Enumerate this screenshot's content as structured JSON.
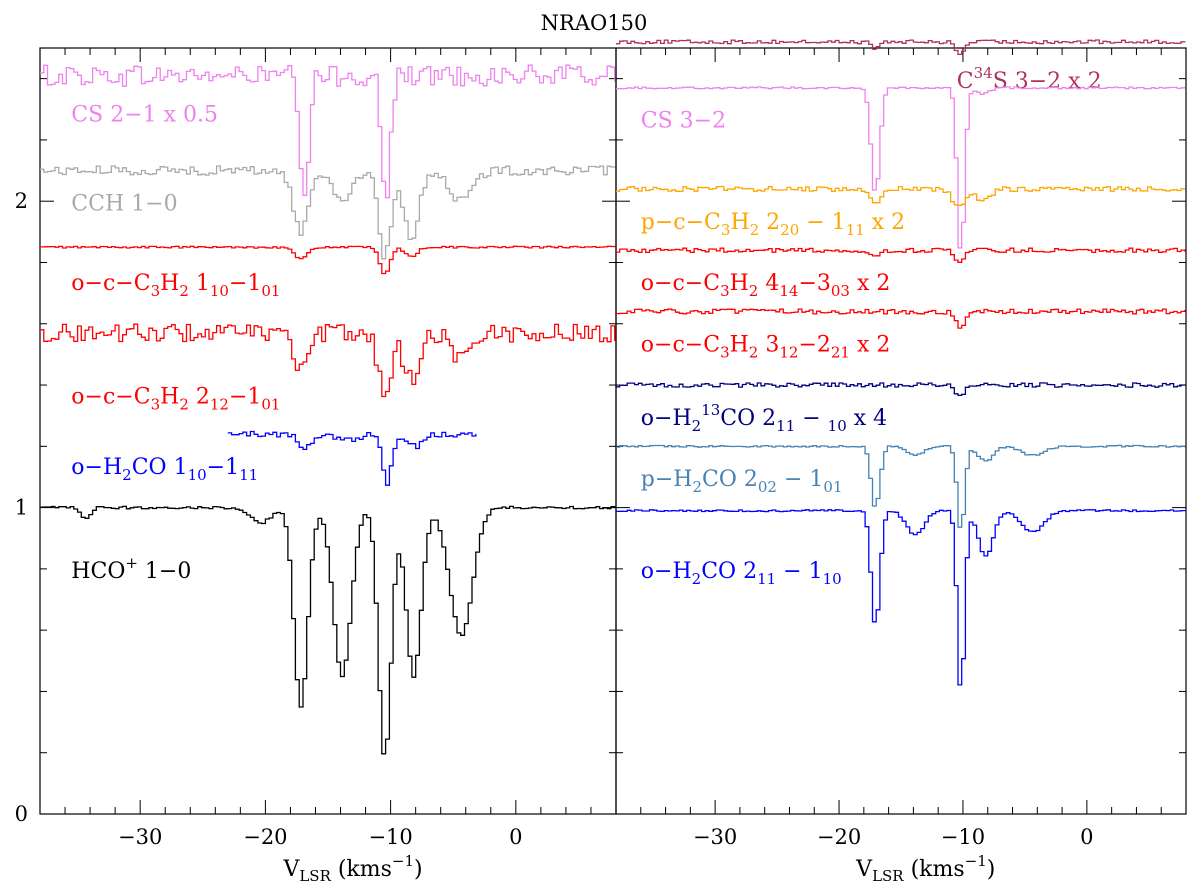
{
  "figure": {
    "title": "NRAO150"
  },
  "chart_data": [
    {
      "type": "line",
      "panel": "left",
      "xlabel": "V_LSR (kms^-1)",
      "xlim": [
        -38,
        8
      ],
      "ylim": [
        0,
        2.5
      ],
      "x_ticks": [
        -30,
        -20,
        -10,
        0
      ],
      "x_tick_labels": [
        "−30",
        "−20",
        "−10",
        "0"
      ],
      "y_ticks": [
        0,
        1,
        2
      ],
      "y_tick_labels": [
        "0",
        "1",
        "2"
      ],
      "series": [
        {
          "name": "CS 2−1 x 0.5",
          "color": "#ee82ee",
          "x_range": [
            -38,
            8
          ],
          "baseline": 2.41,
          "noise": 0.035,
          "label": {
            "parts": [
              {
                "t": "CS 2−1 x 0.5"
              }
            ]
          },
          "label_pos": [
            -35.5,
            2.26
          ],
          "absorption": [
            {
              "v": -17.0,
              "depth": 0.42,
              "width": 0.35
            },
            {
              "v": -10.5,
              "depth": 0.4,
              "width": 0.35
            }
          ]
        },
        {
          "name": "CCH 1−0",
          "color": "#a9a9a9",
          "x_range": [
            -38,
            8
          ],
          "baseline": 2.1,
          "noise": 0.015,
          "label": {
            "parts": [
              {
                "t": "CCH 1−0"
              }
            ]
          },
          "label_pos": [
            -35.5,
            1.97
          ],
          "absorption": [
            {
              "v": -17.3,
              "depth": 0.2,
              "width": 0.6
            },
            {
              "v": -14.0,
              "depth": 0.1,
              "width": 0.7
            },
            {
              "v": -10.6,
              "depth": 0.28,
              "width": 0.5
            },
            {
              "v": -8.5,
              "depth": 0.22,
              "width": 0.6
            },
            {
              "v": -4.5,
              "depth": 0.1,
              "width": 0.9
            }
          ]
        },
        {
          "name": "o-c-C3H2 1_10-1_01",
          "color": "#ff0000",
          "x_range": [
            -38,
            8
          ],
          "baseline": 1.85,
          "noise": 0.003,
          "label": {
            "parts": [
              {
                "t": "o−c−C"
              },
              {
                "t": "3",
                "sub": true
              },
              {
                "t": "H"
              },
              {
                "t": "2",
                "sub": true
              },
              {
                "t": " 1"
              },
              {
                "t": "10",
                "sub": true
              },
              {
                "t": "−1"
              },
              {
                "t": "01",
                "sub": true
              }
            ]
          },
          "label_pos": [
            -35.5,
            1.71
          ],
          "absorption": [
            {
              "v": -17.3,
              "depth": 0.04,
              "width": 0.5
            },
            {
              "v": -10.6,
              "depth": 0.09,
              "width": 0.4
            },
            {
              "v": -8.5,
              "depth": 0.03,
              "width": 0.5
            }
          ]
        },
        {
          "name": "o-c-C3H2 2_12-1_01",
          "color": "#ff0000",
          "x_range": [
            -38,
            8
          ],
          "baseline": 1.57,
          "noise": 0.03,
          "label": {
            "parts": [
              {
                "t": "o−c−C"
              },
              {
                "t": "3",
                "sub": true
              },
              {
                "t": "H"
              },
              {
                "t": "2",
                "sub": true
              },
              {
                "t": " 2"
              },
              {
                "t": "12",
                "sub": true
              },
              {
                "t": "−1"
              },
              {
                "t": "01",
                "sub": true
              }
            ]
          },
          "label_pos": [
            -35.5,
            1.34
          ],
          "absorption": [
            {
              "v": -17.2,
              "depth": 0.12,
              "width": 0.6
            },
            {
              "v": -10.6,
              "depth": 0.2,
              "width": 0.5
            },
            {
              "v": -8.5,
              "depth": 0.15,
              "width": 0.6
            },
            {
              "v": -4.5,
              "depth": 0.08,
              "width": 0.8
            }
          ]
        },
        {
          "name": "o-H2CO 1_10-1_11",
          "color": "#0000ff",
          "x_range": [
            -23,
            -3
          ],
          "baseline": 1.24,
          "noise": 0.01,
          "label": {
            "parts": [
              {
                "t": "o−H"
              },
              {
                "t": "2",
                "sub": true
              },
              {
                "t": "CO 1"
              },
              {
                "t": "10",
                "sub": true
              },
              {
                "t": "−1"
              },
              {
                "t": "11",
                "sub": true
              }
            ]
          },
          "label_pos": [
            -35.5,
            1.11
          ],
          "absorption": [
            {
              "v": -17.0,
              "depth": 0.05,
              "width": 0.5
            },
            {
              "v": -13.5,
              "depth": 0.02,
              "width": 0.8
            },
            {
              "v": -10.4,
              "depth": 0.16,
              "width": 0.35
            },
            {
              "v": -8.2,
              "depth": 0.04,
              "width": 0.6
            }
          ]
        },
        {
          "name": "HCO+ 1−0",
          "color": "#000000",
          "x_range": [
            -38,
            8
          ],
          "baseline": 1.0,
          "noise": 0.004,
          "label": {
            "parts": [
              {
                "t": "HCO"
              },
              {
                "t": "+",
                "sup": true
              },
              {
                "t": " 1−0"
              }
            ]
          },
          "label_pos": [
            -35.5,
            0.77
          ],
          "absorption": [
            {
              "v": -34.5,
              "depth": 0.04,
              "width": 0.35
            },
            {
              "v": -17.3,
              "depth": 0.65,
              "width": 0.55
            },
            {
              "v": -14.0,
              "depth": 0.55,
              "width": 0.7
            },
            {
              "v": -10.6,
              "depth": 0.82,
              "width": 0.5
            },
            {
              "v": -8.3,
              "depth": 0.55,
              "width": 0.6
            },
            {
              "v": -4.5,
              "depth": 0.42,
              "width": 0.9
            },
            {
              "v": -20.5,
              "depth": 0.05,
              "width": 0.8
            }
          ]
        }
      ]
    },
    {
      "type": "line",
      "panel": "right",
      "xlabel": "V_LSR (kms^-1)",
      "xlim": [
        -38,
        8
      ],
      "ylim": [
        0,
        2.5
      ],
      "x_ticks": [
        -30,
        -20,
        -10,
        0
      ],
      "x_tick_labels": [
        "−30",
        "−20",
        "−10",
        "0"
      ],
      "series": [
        {
          "name": "C34S 3−2 x 2",
          "color": "#b03060",
          "x_range": [
            -38,
            8
          ],
          "baseline": 2.52,
          "noise": 0.006,
          "label": {
            "parts": [
              {
                "t": "C"
              },
              {
                "t": "34",
                "sup": true
              },
              {
                "t": "S 3−2 x 2"
              }
            ]
          },
          "label_pos": [
            -10.5,
            2.37
          ],
          "absorption": [
            {
              "v": -17.2,
              "depth": 0.02,
              "width": 0.35
            },
            {
              "v": -10.4,
              "depth": 0.04,
              "width": 0.35
            }
          ]
        },
        {
          "name": "CS 3−2",
          "color": "#ee82ee",
          "x_range": [
            -38,
            8
          ],
          "baseline": 2.37,
          "noise": 0.003,
          "label": {
            "parts": [
              {
                "t": "CS 3−2"
              }
            ]
          },
          "label_pos": [
            -36.0,
            2.24
          ],
          "absorption": [
            {
              "v": -17.2,
              "depth": 0.35,
              "width": 0.35
            },
            {
              "v": -10.3,
              "depth": 0.55,
              "width": 0.3
            },
            {
              "v": -8.5,
              "depth": 0.02,
              "width": 0.5
            }
          ]
        },
        {
          "name": "p-c-C3H2 2_20 − 1_11 x 2",
          "color": "#ffa500",
          "x_range": [
            -38,
            8
          ],
          "baseline": 2.04,
          "noise": 0.008,
          "label": {
            "parts": [
              {
                "t": "p−c−C"
              },
              {
                "t": "3",
                "sub": true
              },
              {
                "t": "H"
              },
              {
                "t": "2",
                "sub": true
              },
              {
                "t": " 2"
              },
              {
                "t": "20",
                "sub": true
              },
              {
                "t": " − 1"
              },
              {
                "t": "11",
                "sub": true
              },
              {
                "t": " x 2"
              }
            ]
          },
          "label_pos": [
            -36.0,
            1.91
          ],
          "absorption": [
            {
              "v": -17.2,
              "depth": 0.05,
              "width": 0.5
            },
            {
              "v": -10.5,
              "depth": 0.06,
              "width": 0.5
            },
            {
              "v": -8.5,
              "depth": 0.04,
              "width": 0.6
            }
          ]
        },
        {
          "name": "o-c-C3H2 4_14-3_03 x 2",
          "color": "#ff0000",
          "x_range": [
            -38,
            8
          ],
          "baseline": 1.84,
          "noise": 0.007,
          "label": {
            "parts": [
              {
                "t": "o−c−C"
              },
              {
                "t": "3",
                "sub": true
              },
              {
                "t": "H"
              },
              {
                "t": "2",
                "sub": true
              },
              {
                "t": " 4"
              },
              {
                "t": "14",
                "sub": true
              },
              {
                "t": "−3"
              },
              {
                "t": "03",
                "sub": true
              },
              {
                "t": " x 2"
              }
            ]
          },
          "label_pos": [
            -36.0,
            1.71
          ],
          "absorption": [
            {
              "v": -17.2,
              "depth": 0.02,
              "width": 0.5
            },
            {
              "v": -10.4,
              "depth": 0.04,
              "width": 0.4
            }
          ]
        },
        {
          "name": "o-c-C3H2 3_12-2_21 x 2",
          "color": "#ff0000",
          "x_range": [
            -38,
            8
          ],
          "baseline": 1.64,
          "noise": 0.008,
          "label": {
            "parts": [
              {
                "t": "o−c−C"
              },
              {
                "t": "3",
                "sub": true
              },
              {
                "t": "H"
              },
              {
                "t": "2",
                "sub": true
              },
              {
                "t": " 3"
              },
              {
                "t": "12",
                "sub": true
              },
              {
                "t": "−2"
              },
              {
                "t": "21",
                "sub": true
              },
              {
                "t": " x 2"
              }
            ]
          },
          "label_pos": [
            -36.0,
            1.51
          ],
          "absorption": [
            {
              "v": -10.4,
              "depth": 0.05,
              "width": 0.4
            }
          ]
        },
        {
          "name": "o-H2 13CO 2_11 − 10 x 4",
          "color": "#000080",
          "x_range": [
            -38,
            8
          ],
          "baseline": 1.4,
          "noise": 0.007,
          "label": {
            "parts": [
              {
                "t": "o−H"
              },
              {
                "t": "2",
                "sub": true
              },
              {
                "t": "13",
                "sup": true
              },
              {
                "t": "CO  2"
              },
              {
                "t": "11",
                "sub": true
              },
              {
                "t": " − "
              },
              {
                "t": "10",
                "sub": true
              },
              {
                "t": " x 4"
              }
            ]
          },
          "label_pos": [
            -36.0,
            1.27
          ],
          "absorption": [
            {
              "v": -10.4,
              "depth": 0.04,
              "width": 0.4
            }
          ]
        },
        {
          "name": "p-H2CO 2_02 − 1_01",
          "color": "#4682b4",
          "x_range": [
            -38,
            8
          ],
          "baseline": 1.2,
          "noise": 0.003,
          "label": {
            "parts": [
              {
                "t": "p−H"
              },
              {
                "t": "2",
                "sub": true
              },
              {
                "t": "CO 2"
              },
              {
                "t": "02",
                "sub": true
              },
              {
                "t": " − 1"
              },
              {
                "t": "01",
                "sub": true
              }
            ]
          },
          "label_pos": [
            -36.0,
            1.07
          ],
          "absorption": [
            {
              "v": -17.2,
              "depth": 0.2,
              "width": 0.35
            },
            {
              "v": -14.0,
              "depth": 0.03,
              "width": 0.7
            },
            {
              "v": -10.3,
              "depth": 0.28,
              "width": 0.3
            },
            {
              "v": -8.3,
              "depth": 0.05,
              "width": 0.6
            },
            {
              "v": -4.5,
              "depth": 0.03,
              "width": 0.9
            }
          ]
        },
        {
          "name": "o-H2CO 2_11 − 1_10",
          "color": "#0000ff",
          "x_range": [
            -38,
            8
          ],
          "baseline": 0.99,
          "noise": 0.003,
          "label": {
            "parts": [
              {
                "t": "o−H"
              },
              {
                "t": "2",
                "sub": true
              },
              {
                "t": "CO 2"
              },
              {
                "t": "11",
                "sub": true
              },
              {
                "t": " − 1"
              },
              {
                "t": "10",
                "sub": true
              }
            ]
          },
          "label_pos": [
            -36.0,
            0.77
          ],
          "absorption": [
            {
              "v": -17.2,
              "depth": 0.38,
              "width": 0.35
            },
            {
              "v": -14.0,
              "depth": 0.08,
              "width": 0.7
            },
            {
              "v": -10.3,
              "depth": 0.6,
              "width": 0.3
            },
            {
              "v": -8.3,
              "depth": 0.15,
              "width": 0.6
            },
            {
              "v": -4.5,
              "depth": 0.07,
              "width": 0.9
            }
          ]
        }
      ]
    }
  ]
}
